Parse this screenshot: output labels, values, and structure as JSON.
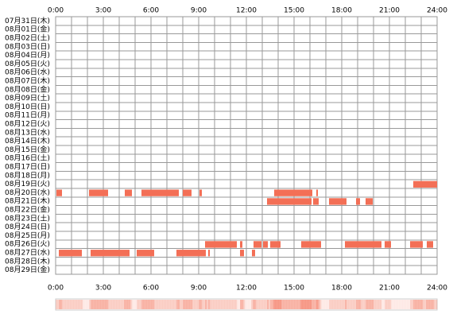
{
  "chart_data": {
    "type": "timeline",
    "color": "#f36f56",
    "xlim": [
      0,
      24
    ],
    "xticks": [
      {
        "value": 0,
        "label": "0:00"
      },
      {
        "value": 3,
        "label": "3:00"
      },
      {
        "value": 6,
        "label": "6:00"
      },
      {
        "value": 9,
        "label": "9:00"
      },
      {
        "value": 12,
        "label": "12:00"
      },
      {
        "value": 15,
        "label": "15:00"
      },
      {
        "value": 18,
        "label": "18:00"
      },
      {
        "value": 21,
        "label": "21:00"
      },
      {
        "value": 24,
        "label": "24:00"
      }
    ],
    "rows": [
      {
        "label": "07月31日(木)",
        "intervals": []
      },
      {
        "label": "08月01日(金)",
        "intervals": []
      },
      {
        "label": "08月02日(土)",
        "intervals": []
      },
      {
        "label": "08月03日(日)",
        "intervals": []
      },
      {
        "label": "08月04日(月)",
        "intervals": []
      },
      {
        "label": "08月05日(火)",
        "intervals": []
      },
      {
        "label": "08月06日(水)",
        "intervals": []
      },
      {
        "label": "08月07日(木)",
        "intervals": []
      },
      {
        "label": "08月08日(金)",
        "intervals": []
      },
      {
        "label": "08月09日(土)",
        "intervals": []
      },
      {
        "label": "08月10日(日)",
        "intervals": []
      },
      {
        "label": "08月11日(月)",
        "intervals": []
      },
      {
        "label": "08月12日(火)",
        "intervals": []
      },
      {
        "label": "08月13日(水)",
        "intervals": []
      },
      {
        "label": "08月14日(木)",
        "intervals": []
      },
      {
        "label": "08月15日(金)",
        "intervals": []
      },
      {
        "label": "08月16日(土)",
        "intervals": []
      },
      {
        "label": "08月17日(日)",
        "intervals": []
      },
      {
        "label": "08月18日(月)",
        "intervals": []
      },
      {
        "label": "08月19日(火)",
        "intervals": [
          [
            22.5,
            24
          ]
        ]
      },
      {
        "label": "08月20日(水)",
        "intervals": [
          [
            0.05,
            0.4
          ],
          [
            2.1,
            3.3
          ],
          [
            4.35,
            4.8
          ],
          [
            5.4,
            7.75
          ],
          [
            8.0,
            8.55
          ],
          [
            9.05,
            9.2
          ],
          [
            13.75,
            16.15
          ],
          [
            16.4,
            16.5
          ]
        ]
      },
      {
        "label": "08月21日(木)",
        "intervals": [
          [
            13.3,
            16.1
          ],
          [
            16.2,
            16.55
          ],
          [
            17.2,
            18.3
          ],
          [
            18.9,
            19.15
          ],
          [
            19.5,
            19.95
          ]
        ]
      },
      {
        "label": "08月22日(金)",
        "intervals": []
      },
      {
        "label": "08月23日(土)",
        "intervals": []
      },
      {
        "label": "08月24日(日)",
        "intervals": []
      },
      {
        "label": "08月25日(月)",
        "intervals": []
      },
      {
        "label": "08月26日(火)",
        "intervals": [
          [
            9.4,
            11.4
          ],
          [
            11.6,
            11.75
          ],
          [
            12.45,
            12.95
          ],
          [
            13.05,
            13.35
          ],
          [
            13.5,
            14.15
          ],
          [
            15.45,
            16.7
          ],
          [
            18.2,
            20.5
          ],
          [
            20.7,
            21.1
          ],
          [
            22.3,
            23.1
          ],
          [
            23.35,
            23.75
          ]
        ]
      },
      {
        "label": "08月27日(水)",
        "intervals": [
          [
            0.2,
            1.65
          ],
          [
            2.2,
            4.65
          ],
          [
            5.1,
            6.2
          ],
          [
            7.6,
            9.45
          ],
          [
            9.6,
            9.7
          ],
          [
            11.6,
            11.85
          ],
          [
            12.35,
            12.55
          ]
        ]
      },
      {
        "label": "08月28日(木)",
        "intervals": []
      },
      {
        "label": "08月29日(金)",
        "intervals": []
      }
    ]
  }
}
